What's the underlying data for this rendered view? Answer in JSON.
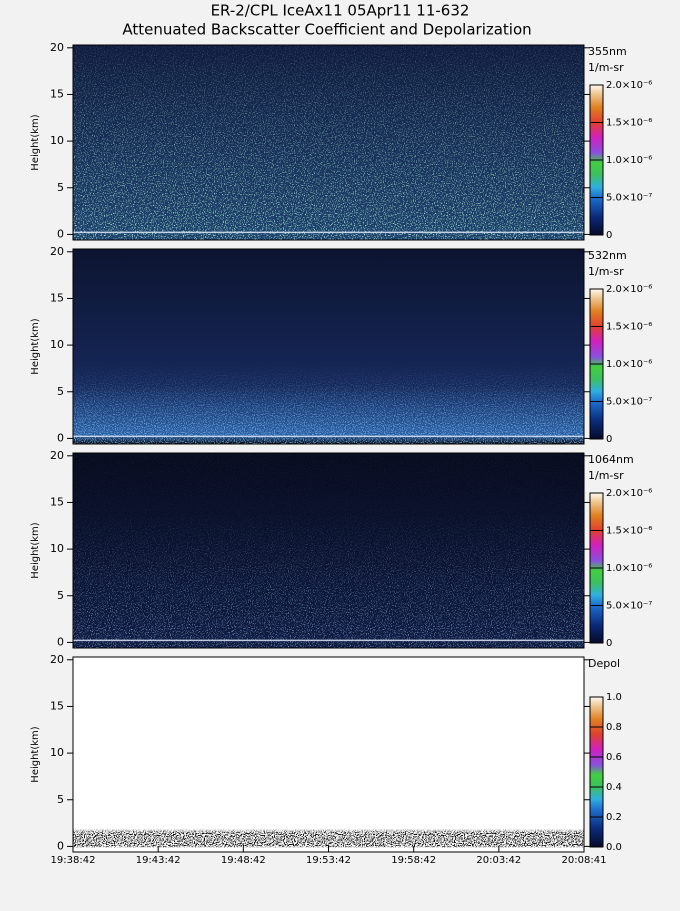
{
  "chart_data": [
    {
      "type": "heatmap",
      "title": "ER-2/CPL IceAx11 05Apr11 11-632",
      "subtitle": "Attenuated Backscatter Coefficient and Depolarization",
      "ylabel": "Height(km)",
      "ylim": [
        -0.6,
        20.3
      ],
      "yticks": [
        0,
        5,
        10,
        15,
        20
      ],
      "colorbar_label": "355nm",
      "colorbar_units": "1/m-sr",
      "clim": [
        0,
        2e-06
      ],
      "cticks": [
        0,
        {
          "value": 5e-07,
          "label": "5.0×10⁻⁷"
        },
        {
          "value": 1e-06,
          "label": "1.0×10⁻⁶"
        },
        {
          "value": 1.5e-06,
          "label": "1.5×10⁻⁶"
        },
        {
          "value": 2e-06,
          "label": "2.0×10⁻⁶"
        }
      ]
    },
    {
      "type": "heatmap",
      "ylabel": "Height(km)",
      "ylim": [
        -0.6,
        20.3
      ],
      "yticks": [
        0,
        5,
        10,
        15,
        20
      ],
      "colorbar_label": "532nm",
      "colorbar_units": "1/m-sr",
      "clim": [
        0,
        2e-06
      ],
      "cticks": [
        0,
        {
          "value": 5e-07,
          "label": "5.0×10⁻⁷"
        },
        {
          "value": 1e-06,
          "label": "1.0×10⁻⁶"
        },
        {
          "value": 1.5e-06,
          "label": "1.5×10⁻⁶"
        },
        {
          "value": 2e-06,
          "label": "2.0×10⁻⁶"
        }
      ]
    },
    {
      "type": "heatmap",
      "ylabel": "Height(km)",
      "ylim": [
        -0.6,
        20.3
      ],
      "yticks": [
        0,
        5,
        10,
        15,
        20
      ],
      "colorbar_label": "1064nm",
      "colorbar_units": "1/m-sr",
      "clim": [
        0,
        2e-06
      ],
      "cticks": [
        0,
        {
          "value": 5e-07,
          "label": "5.0×10⁻⁷"
        },
        {
          "value": 1e-06,
          "label": "1.0×10⁻⁶"
        },
        {
          "value": 1.5e-06,
          "label": "1.5×10⁻⁶"
        },
        {
          "value": 2e-06,
          "label": "2.0×10⁻⁶"
        }
      ]
    },
    {
      "type": "heatmap",
      "ylabel": "Height(km)",
      "ylim": [
        -0.6,
        20.3
      ],
      "yticks": [
        0,
        5,
        10,
        15,
        20
      ],
      "colorbar_label": "Depol",
      "clim": [
        0,
        1
      ],
      "cticks": [
        {
          "value": 0,
          "label": "0.0"
        },
        0.2,
        0.4,
        0.6,
        0.8,
        {
          "value": 1,
          "label": "1.0"
        }
      ],
      "xtick_labels": [
        "19:38:42",
        "19:43:42",
        "19:48:42",
        "19:53:42",
        "19:58:42",
        "20:03:42",
        "20:08:41"
      ]
    }
  ]
}
